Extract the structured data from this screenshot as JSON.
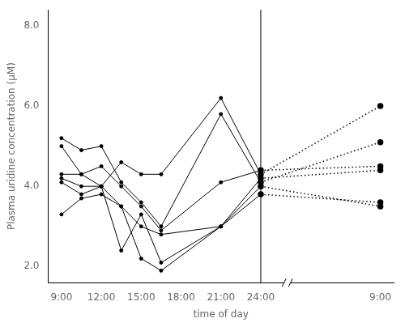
{
  "chart_data": {
    "type": "line",
    "xlabel": "time of day",
    "ylabel": "Plasma uridine concentration (μM)",
    "xlim": [
      8,
      34
    ],
    "xticks": [
      {
        "value": 9,
        "label": "9:00"
      },
      {
        "value": 12,
        "label": "12:00"
      },
      {
        "value": 15,
        "label": "15:00"
      },
      {
        "value": 18,
        "label": "18:00"
      },
      {
        "value": 21,
        "label": "21:00"
      },
      {
        "value": 24,
        "label": "24:00"
      },
      {
        "value": 33,
        "label": "9:00"
      }
    ],
    "ylim": [
      1.6,
      8.4
    ],
    "yticks": [
      {
        "value": 2.0,
        "label": "2.0"
      },
      {
        "value": 4.0,
        "label": "4.0"
      },
      {
        "value": 6.0,
        "label": "6.0"
      },
      {
        "value": 8.0,
        "label": "8.0"
      }
    ],
    "grid": false,
    "vline": 24,
    "axis_break": 26,
    "series": [
      {
        "x": [
          9,
          10.5,
          12,
          13.5,
          15,
          16.5,
          21,
          24
        ],
        "values": [
          5.2,
          4.9,
          5.0,
          4.1,
          3.6,
          3.0,
          5.8,
          4.1
        ],
        "color": "#000000",
        "line_style": "solid",
        "marker": "circle"
      },
      {
        "x": [
          24,
          33
        ],
        "values": [
          4.1,
          5.1
        ],
        "color": "#000000",
        "line_style": "dotted",
        "marker": "circle"
      },
      {
        "x": [
          9,
          10.5,
          12,
          13.5,
          15,
          16.5,
          21,
          24
        ],
        "values": [
          5.0,
          4.3,
          4.5,
          4.0,
          3.5,
          2.9,
          4.1,
          4.4
        ],
        "color": "#000000",
        "line_style": "solid",
        "marker": "circle"
      },
      {
        "x": [
          24,
          33
        ],
        "values": [
          4.4,
          4.5
        ],
        "color": "#000000",
        "line_style": "dotted",
        "marker": "circle"
      },
      {
        "x": [
          9,
          10.5,
          12,
          13.5,
          15,
          16.5,
          21,
          24
        ],
        "values": [
          4.3,
          4.3,
          4.0,
          3.5,
          3.0,
          2.8,
          3.0,
          4.2
        ],
        "color": "#000000",
        "line_style": "solid",
        "marker": "circle"
      },
      {
        "x": [
          24,
          33
        ],
        "values": [
          4.2,
          4.4
        ],
        "color": "#000000",
        "line_style": "dotted",
        "marker": "circle"
      },
      {
        "x": [
          9,
          10.5,
          12,
          13.5,
          15,
          16.5,
          21,
          24
        ],
        "values": [
          4.1,
          3.8,
          4.0,
          2.4,
          3.3,
          2.1,
          3.0,
          3.8
        ],
        "color": "#000000",
        "line_style": "solid",
        "marker": "circle"
      },
      {
        "x": [
          24,
          33
        ],
        "values": [
          3.8,
          3.6
        ],
        "color": "#000000",
        "line_style": "dotted",
        "marker": "circle"
      },
      {
        "x": [
          9,
          10.5,
          12,
          13.5,
          15,
          16.5,
          21,
          24
        ],
        "values": [
          3.3,
          3.7,
          3.8,
          3.5,
          2.2,
          1.9,
          3.0,
          4.0
        ],
        "color": "#000000",
        "line_style": "solid",
        "marker": "circle"
      },
      {
        "x": [
          24,
          33
        ],
        "values": [
          4.0,
          3.5
        ],
        "color": "#000000",
        "line_style": "dotted",
        "marker": "circle"
      },
      {
        "x": [
          9,
          10.5,
          12,
          13.5,
          15,
          16.5,
          21,
          24
        ],
        "values": [
          4.2,
          4.0,
          4.0,
          4.6,
          4.3,
          4.3,
          6.2,
          4.3
        ],
        "color": "#000000",
        "line_style": "solid",
        "marker": "circle"
      },
      {
        "x": [
          24,
          33
        ],
        "values": [
          4.3,
          6.0
        ],
        "color": "#000000",
        "line_style": "dotted",
        "marker": "circle"
      }
    ]
  }
}
